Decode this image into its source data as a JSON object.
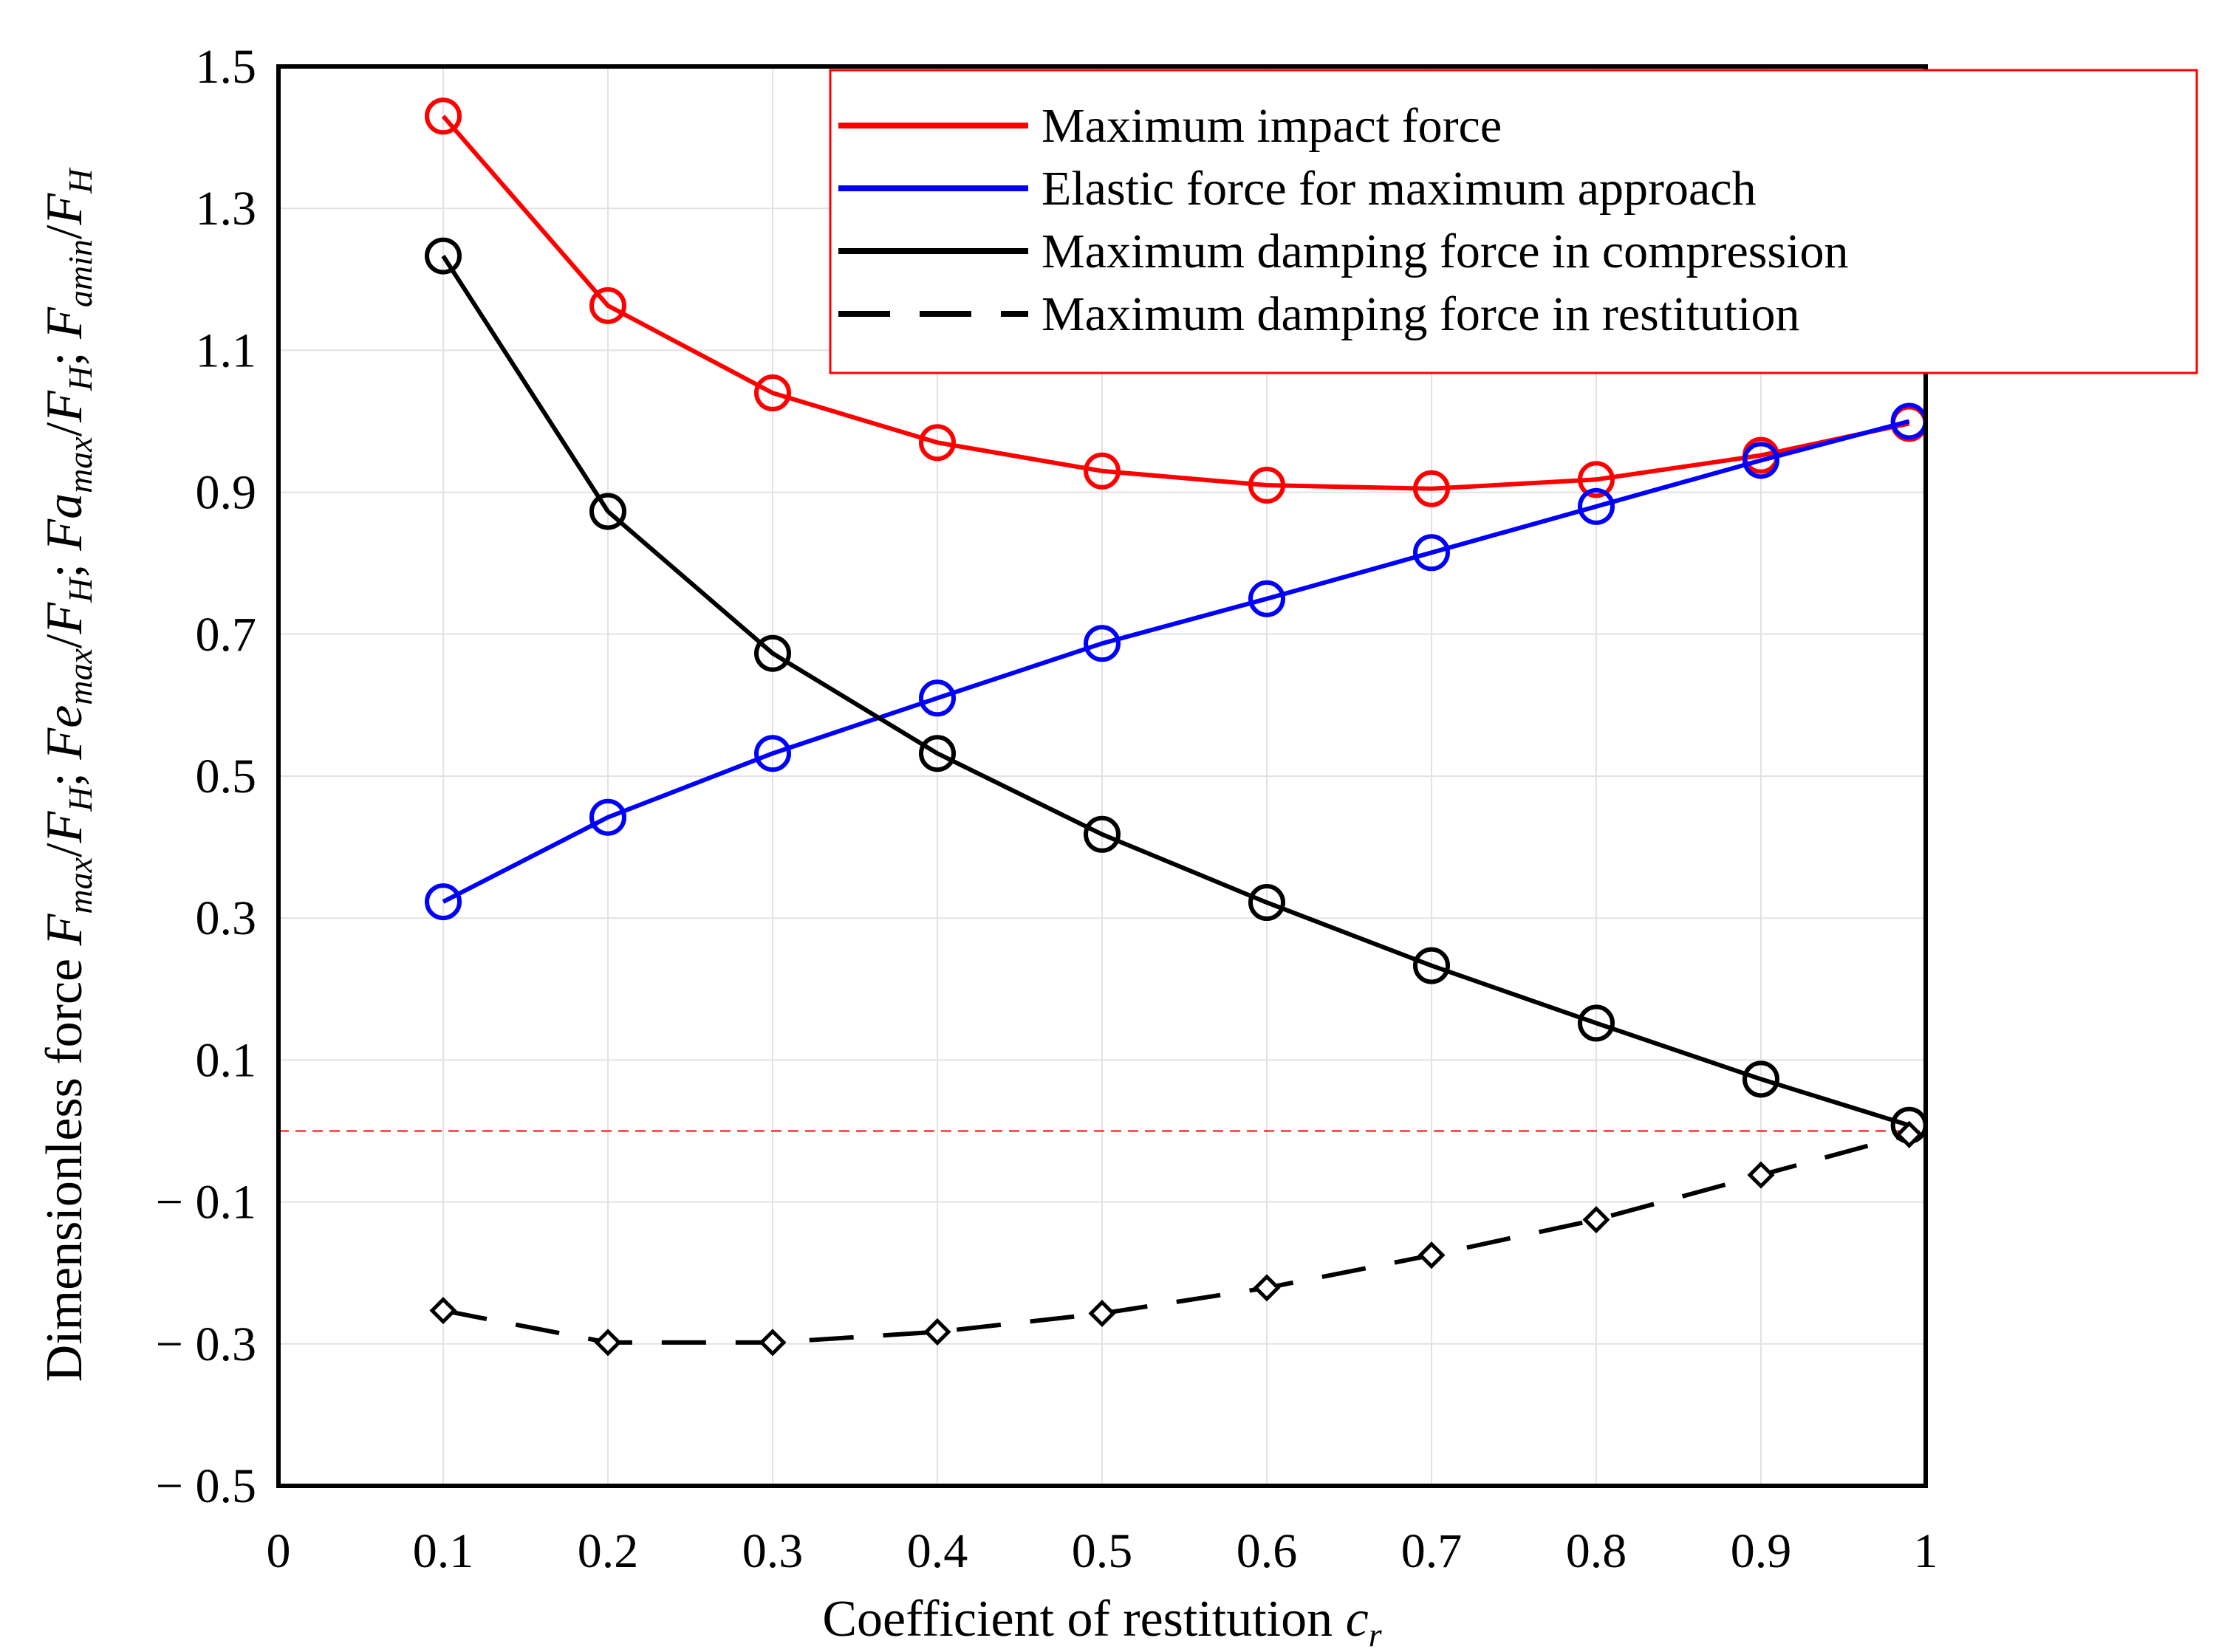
{
  "chart_data": {
    "type": "line",
    "xlabel": {
      "text": "Coefficient of restitution ",
      "var": "c",
      "sub": "r"
    },
    "ylabel": {
      "prefix": "Dimensionless force ",
      "parts": [
        {
          "var": "F",
          "sub": "max",
          "after": "/"
        },
        {
          "var": "F",
          "sub": "H",
          "after": "; "
        },
        {
          "var": "Fe",
          "sub": "max",
          "after": "/"
        },
        {
          "var": "F",
          "sub": "H",
          "after": "; "
        },
        {
          "var": "Fa",
          "sub": "max",
          "after": "/"
        },
        {
          "var": "F",
          "sub": "H",
          "after": "; "
        },
        {
          "var": "F",
          "sub": "amin",
          "after": "/"
        },
        {
          "var": "F",
          "sub": "H",
          "after": ""
        }
      ]
    },
    "xlim": [
      0,
      1
    ],
    "ylim": [
      -0.5,
      1.5
    ],
    "x_ticks": [
      0,
      0.1,
      0.2,
      0.3,
      0.4,
      0.5,
      0.6,
      0.7,
      0.8,
      0.9,
      1
    ],
    "x_tick_labels": [
      "0",
      "0.1",
      "0.2",
      "0.3",
      "0.4",
      "0.5",
      "0.6",
      "0.7",
      "0.8",
      "0.9",
      "1"
    ],
    "y_ticks": [
      -0.5,
      -0.3,
      -0.1,
      0.1,
      0.3,
      0.5,
      0.7,
      0.9,
      1.1,
      1.3,
      1.5
    ],
    "y_tick_labels": [
      "− 0.5",
      "− 0.3",
      "− 0.1",
      "0.1",
      "0.3",
      "0.5",
      "0.7",
      "0.9",
      "1.1",
      "1.3",
      "1.5"
    ],
    "grid": true,
    "legend_position": "top-right",
    "reference_line": {
      "y": 0,
      "color": "#ff0000",
      "style": "dashed"
    },
    "series": [
      {
        "name": "Maximum impact force",
        "color": "#ff0000",
        "line": "solid",
        "marker": "circle",
        "x": [
          0.1,
          0.2,
          0.3,
          0.4,
          0.5,
          0.6,
          0.7,
          0.8,
          0.9,
          0.99
        ],
        "y": [
          1.43,
          1.163,
          1.04,
          0.97,
          0.93,
          0.91,
          0.905,
          0.918,
          0.952,
          0.997
        ]
      },
      {
        "name": "Elastic force for maximum approach",
        "color": "#0000ff",
        "line": "solid",
        "marker": "circle",
        "x": [
          0.1,
          0.2,
          0.3,
          0.4,
          0.5,
          0.6,
          0.7,
          0.8,
          0.9,
          0.99
        ],
        "y": [
          0.323,
          0.442,
          0.532,
          0.61,
          0.687,
          0.75,
          0.815,
          0.88,
          0.945,
          1.0
        ]
      },
      {
        "name": "Maximum damping force in compression",
        "color": "#000000",
        "line": "solid",
        "marker": "circle",
        "x": [
          0.1,
          0.2,
          0.3,
          0.4,
          0.5,
          0.6,
          0.7,
          0.8,
          0.9,
          0.99
        ],
        "y": [
          1.233,
          0.873,
          0.673,
          0.532,
          0.418,
          0.322,
          0.233,
          0.152,
          0.073,
          0.008
        ]
      },
      {
        "name": "Maximum damping force in restitution",
        "color": "#000000",
        "line": "dashed",
        "marker": "diamond",
        "x": [
          0.1,
          0.2,
          0.3,
          0.4,
          0.5,
          0.6,
          0.7,
          0.8,
          0.9,
          0.99
        ],
        "y": [
          -0.253,
          -0.298,
          -0.298,
          -0.283,
          -0.257,
          -0.221,
          -0.175,
          -0.125,
          -0.062,
          -0.005
        ]
      }
    ]
  }
}
